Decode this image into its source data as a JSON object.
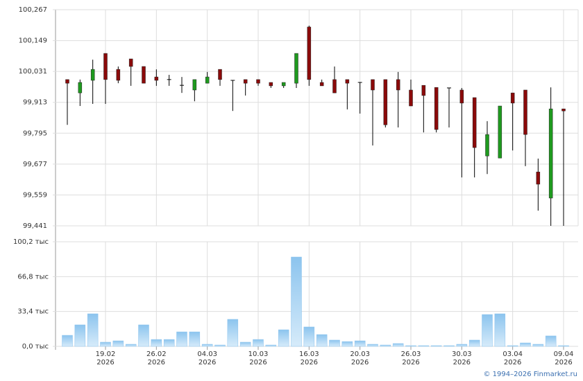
{
  "chart_data": {
    "type": "candlestick",
    "categories": [
      null,
      null,
      null,
      "19.02 2026",
      null,
      null,
      null,
      "26.02 2026",
      null,
      null,
      null,
      "04.03 2026",
      null,
      null,
      null,
      "10.03 2026",
      null,
      null,
      null,
      "16.03 2026",
      null,
      null,
      null,
      "20.03 2026",
      null,
      null,
      null,
      "26.03 2026",
      null,
      null,
      null,
      "30.03 2026",
      null,
      null,
      null,
      "03.04 2026",
      null,
      null,
      null,
      "09.04 2026"
    ],
    "open": [
      100.0,
      99.949,
      99.997,
      100.1,
      100.039,
      100.079,
      100.05,
      100.01,
      100.0,
      99.978,
      99.96,
      99.986,
      100.039,
      99.997,
      100.0,
      100.0,
      99.989,
      99.976,
      99.986,
      100.201,
      99.989,
      100.0,
      100.0,
      99.989,
      100.0,
      100.0,
      100.0,
      99.96,
      99.978,
      99.97,
      99.968,
      99.96,
      99.931,
      99.708,
      99.7,
      99.949,
      99.96,
      99.647,
      99.547,
      99.888
    ],
    "high": [
      100.0,
      100.0,
      100.076,
      100.1,
      100.05,
      100.079,
      100.05,
      100.039,
      100.018,
      100.01,
      100.0,
      100.029,
      100.039,
      99.997,
      100.0,
      100.0,
      99.989,
      99.989,
      100.1,
      100.206,
      100.0,
      100.05,
      100.0,
      99.989,
      100.0,
      100.0,
      100.029,
      100.0,
      99.978,
      99.97,
      99.968,
      99.968,
      99.931,
      99.841,
      99.899,
      99.949,
      99.96,
      99.698,
      99.97,
      99.888
    ],
    "low": [
      99.827,
      99.899,
      99.907,
      99.907,
      99.986,
      99.976,
      99.986,
      99.976,
      99.976,
      99.949,
      99.917,
      99.986,
      99.976,
      99.88,
      99.939,
      99.976,
      99.968,
      99.968,
      99.968,
      99.976,
      99.976,
      99.949,
      99.886,
      99.87,
      99.748,
      99.817,
      99.817,
      99.899,
      99.798,
      99.798,
      99.817,
      99.626,
      99.626,
      99.639,
      99.7,
      99.729,
      99.669,
      99.499,
      99.441,
      99.441
    ],
    "close": [
      99.986,
      99.989,
      100.039,
      100.0,
      99.997,
      100.05,
      99.986,
      99.997,
      100.0,
      99.978,
      100.0,
      100.01,
      100.0,
      99.997,
      99.986,
      99.986,
      99.976,
      99.989,
      100.1,
      100.0,
      99.976,
      99.949,
      99.986,
      99.989,
      99.96,
      99.827,
      99.96,
      99.899,
      99.939,
      99.809,
      99.968,
      99.91,
      99.74,
      99.79,
      99.899,
      99.91,
      99.79,
      99.6,
      99.888,
      99.88
    ],
    "volume": [
      10.6,
      20.6,
      31.2,
      4.0,
      5.3,
      2.0,
      20.6,
      6.6,
      6.6,
      13.9,
      13.9,
      2.0,
      1.3,
      25.9,
      4.0,
      6.6,
      1.3,
      15.9,
      85.6,
      18.6,
      11.3,
      6.0,
      4.6,
      5.3,
      2.0,
      1.3,
      2.7,
      0.7,
      0.7,
      0.7,
      0.7,
      2.0,
      6.0,
      30.5,
      31.2,
      0.7,
      3.3,
      2.0,
      10.0,
      0.7
    ],
    "ylim": [
      99.441,
      100.267
    ],
    "yticks": [
      {
        "value": 99.441,
        "label": "99,441"
      },
      {
        "value": 99.559,
        "label": "99,559"
      },
      {
        "value": 99.677,
        "label": "99,677"
      },
      {
        "value": 99.795,
        "label": "99,795"
      },
      {
        "value": 99.913,
        "label": "99,913"
      },
      {
        "value": 100.031,
        "label": "100,031"
      },
      {
        "value": 100.149,
        "label": "100,149"
      },
      {
        "value": 100.267,
        "label": "100,267"
      }
    ],
    "volume_ylim": [
      0,
      100.2
    ],
    "volume_yticks": [
      {
        "value": 0,
        "label": "0,0 тыс"
      },
      {
        "value": 33.4,
        "label": "33,4 тыс"
      },
      {
        "value": 66.8,
        "label": "66,8 тыс"
      },
      {
        "value": 100.2,
        "label": "100,2 тыс"
      }
    ],
    "up_color": "#1f9a1f",
    "down_color": "#8b0a0a",
    "volume_color": "#8cc4ee",
    "grid": true
  },
  "footer": "© 1994–2026 Finmarket.ru"
}
